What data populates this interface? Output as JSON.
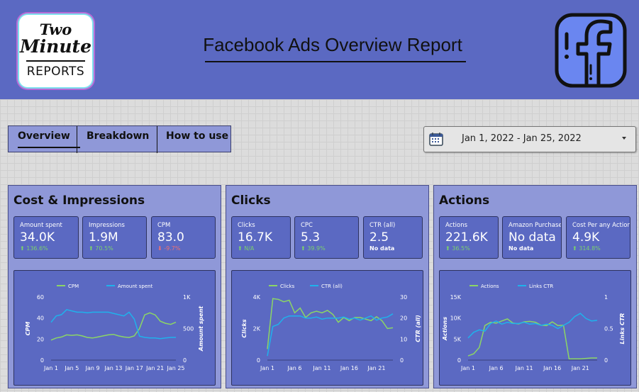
{
  "header": {
    "title": "Facebook Ads Overview Report",
    "logo_line1": "Two",
    "logo_line2": "Minute",
    "logo_line3": "REPORTS",
    "background": "#5b69c2"
  },
  "tabs": [
    {
      "label": "Overview",
      "active": true
    },
    {
      "label": "Breakdown",
      "active": false
    },
    {
      "label": "How to use",
      "active": false
    }
  ],
  "date_range": {
    "label": "Jan 1, 2022 - Jan 25, 2022",
    "icon": "calendar-icon"
  },
  "colors": {
    "series_green": "#8cd665",
    "series_blue": "#1fb2ec",
    "up": "#7bd16c",
    "down": "#f07070"
  },
  "panels": {
    "cost": {
      "title": "Cost & Impressions",
      "kpis": [
        {
          "label": "Amount spent",
          "value": "34.0K",
          "change": "136.6%",
          "trend": "up"
        },
        {
          "label": "Impressions",
          "value": "1.9M",
          "change": "70.5%",
          "trend": "up"
        },
        {
          "label": "CPM",
          "value": "83.0",
          "change": "-9.7%",
          "trend": "down"
        }
      ]
    },
    "clicks": {
      "title": "Clicks",
      "kpis": [
        {
          "label": "Clicks",
          "value": "16.7K",
          "change": "N/A",
          "trend": "up"
        },
        {
          "label": "CPC",
          "value": "5.3",
          "change": "39.9%",
          "trend": "up"
        },
        {
          "label": "CTR (all)",
          "value": "2.5",
          "change": "No data",
          "trend": "none"
        }
      ]
    },
    "actions": {
      "title": "Actions",
      "kpis": [
        {
          "label": "Actions",
          "value": "221.6K",
          "change": "36.5%",
          "trend": "up"
        },
        {
          "label": "Amazon Purchase Z",
          "value": "No data",
          "change": "No data",
          "trend": "none"
        },
        {
          "label": "Cost Per any Action",
          "value": "4.9K",
          "change": "314.8%",
          "trend": "up"
        }
      ]
    }
  },
  "chart_data": [
    {
      "type": "line",
      "xlabel": "",
      "ylabel": "CPM",
      "y2label": "Amount spent",
      "x_ticks": [
        "Jan 1",
        "Jan 5",
        "Jan 9",
        "Jan 13",
        "Jan 17",
        "Jan 21",
        "Jan 25"
      ],
      "y_ticks": [
        "0",
        "20",
        "40",
        "60"
      ],
      "y2_ticks": [
        "0",
        "500",
        "1K"
      ],
      "ylim": [
        0,
        60
      ],
      "y2lim": [
        0,
        1000
      ],
      "series": [
        {
          "name": "CPM",
          "axis": "left",
          "color": "#8cd665",
          "values": [
            19,
            21,
            22,
            24,
            23.5,
            24,
            23,
            21.5,
            21,
            22,
            23,
            24,
            24.5,
            23,
            22,
            21.5,
            23,
            30,
            43,
            45,
            43,
            37,
            35,
            34,
            36
          ]
        },
        {
          "name": "Amount spent",
          "axis": "right",
          "color": "#1fb2ec",
          "values": [
            600,
            700,
            720,
            800,
            780,
            760,
            760,
            750,
            760,
            760,
            760,
            760,
            740,
            720,
            700,
            760,
            650,
            380,
            360,
            350,
            350,
            340,
            350,
            360,
            360
          ]
        }
      ]
    },
    {
      "type": "line",
      "xlabel": "",
      "ylabel": "Clicks",
      "y2label": "CTR (all)",
      "x_ticks": [
        "Jan 1",
        "Jan 6",
        "Jan 11",
        "Jan 16",
        "Jan 21"
      ],
      "y_ticks": [
        "0",
        "2K",
        "4K"
      ],
      "y2_ticks": [
        "0",
        "10",
        "20",
        "30"
      ],
      "ylim": [
        0,
        4000
      ],
      "y2lim": [
        0,
        30
      ],
      "series": [
        {
          "name": "Clicks",
          "axis": "left",
          "color": "#8cd665",
          "values": [
            700,
            3900,
            3850,
            3700,
            3800,
            3000,
            3300,
            2700,
            3000,
            3100,
            3000,
            3150,
            2900,
            2400,
            2700,
            2500,
            2700,
            2700,
            2600,
            2500,
            2750,
            2500,
            2000,
            2050
          ]
        },
        {
          "name": "CTR (all)",
          "axis": "right",
          "color": "#1fb2ec",
          "values": [
            2,
            16,
            17,
            20,
            21,
            21,
            21,
            20,
            20,
            20.5,
            19.5,
            20,
            20,
            20,
            20.5,
            19.5,
            20,
            19,
            20,
            21,
            19,
            20,
            20.5,
            22
          ]
        }
      ]
    },
    {
      "type": "line",
      "xlabel": "",
      "ylabel": "Actions",
      "y2label": "Links CTR",
      "x_ticks": [
        "Jan 1",
        "Jan 6",
        "Jan 11",
        "Jan 16",
        "Jan 21"
      ],
      "y_ticks": [
        "0",
        "5K",
        "10K",
        "15K"
      ],
      "y2_ticks": [
        "0",
        "0.5",
        "1"
      ],
      "ylim": [
        0,
        15000
      ],
      "y2lim": [
        0,
        1
      ],
      "series": [
        {
          "name": "Actions",
          "axis": "left",
          "color": "#8cd665",
          "values": [
            1000,
            1500,
            3000,
            8200,
            9000,
            8800,
            9300,
            9800,
            8800,
            8600,
            9100,
            9200,
            9000,
            8300,
            8200,
            9100,
            8200,
            8300,
            300,
            300,
            300,
            400,
            500,
            500
          ]
        },
        {
          "name": "Links CTR",
          "axis": "right",
          "color": "#1fb2ec",
          "values": [
            0.35,
            0.44,
            0.48,
            0.46,
            0.58,
            0.62,
            0.57,
            0.6,
            0.58,
            0.58,
            0.6,
            0.57,
            0.58,
            0.55,
            0.57,
            0.55,
            0.5,
            0.55,
            0.6,
            0.69,
            0.74,
            0.66,
            0.62,
            0.63
          ]
        }
      ]
    }
  ]
}
